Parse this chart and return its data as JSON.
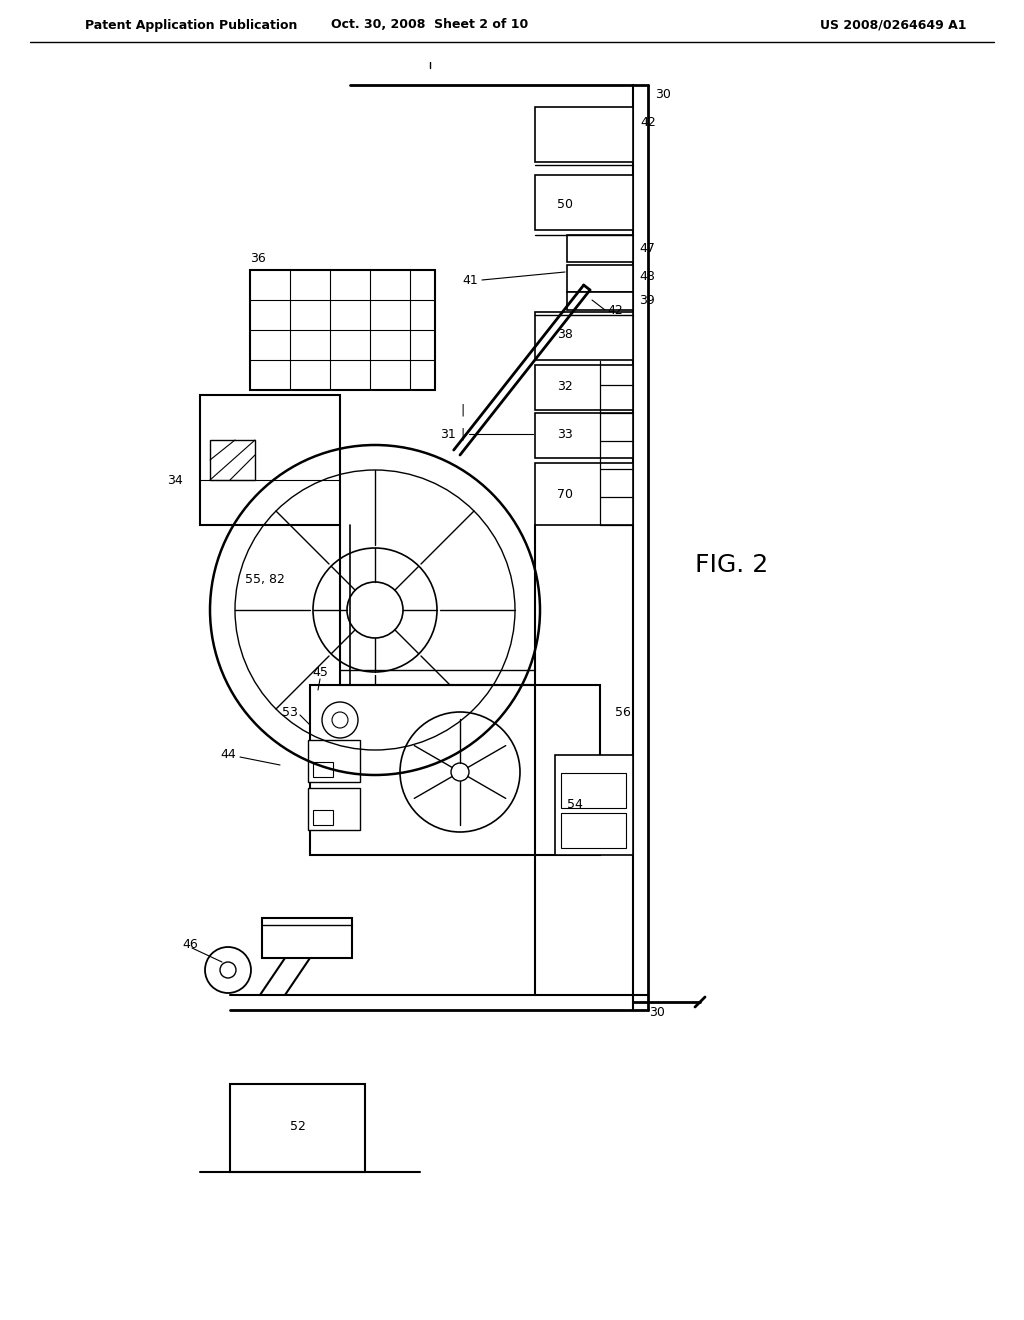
{
  "bg_color": "#ffffff",
  "line_color": "#000000",
  "header_left": "Patent Application Publication",
  "header_mid": "Oct. 30, 2008  Sheet 2 of 10",
  "header_right": "US 2008/0264649 A1",
  "fig_label": "FIG. 2"
}
